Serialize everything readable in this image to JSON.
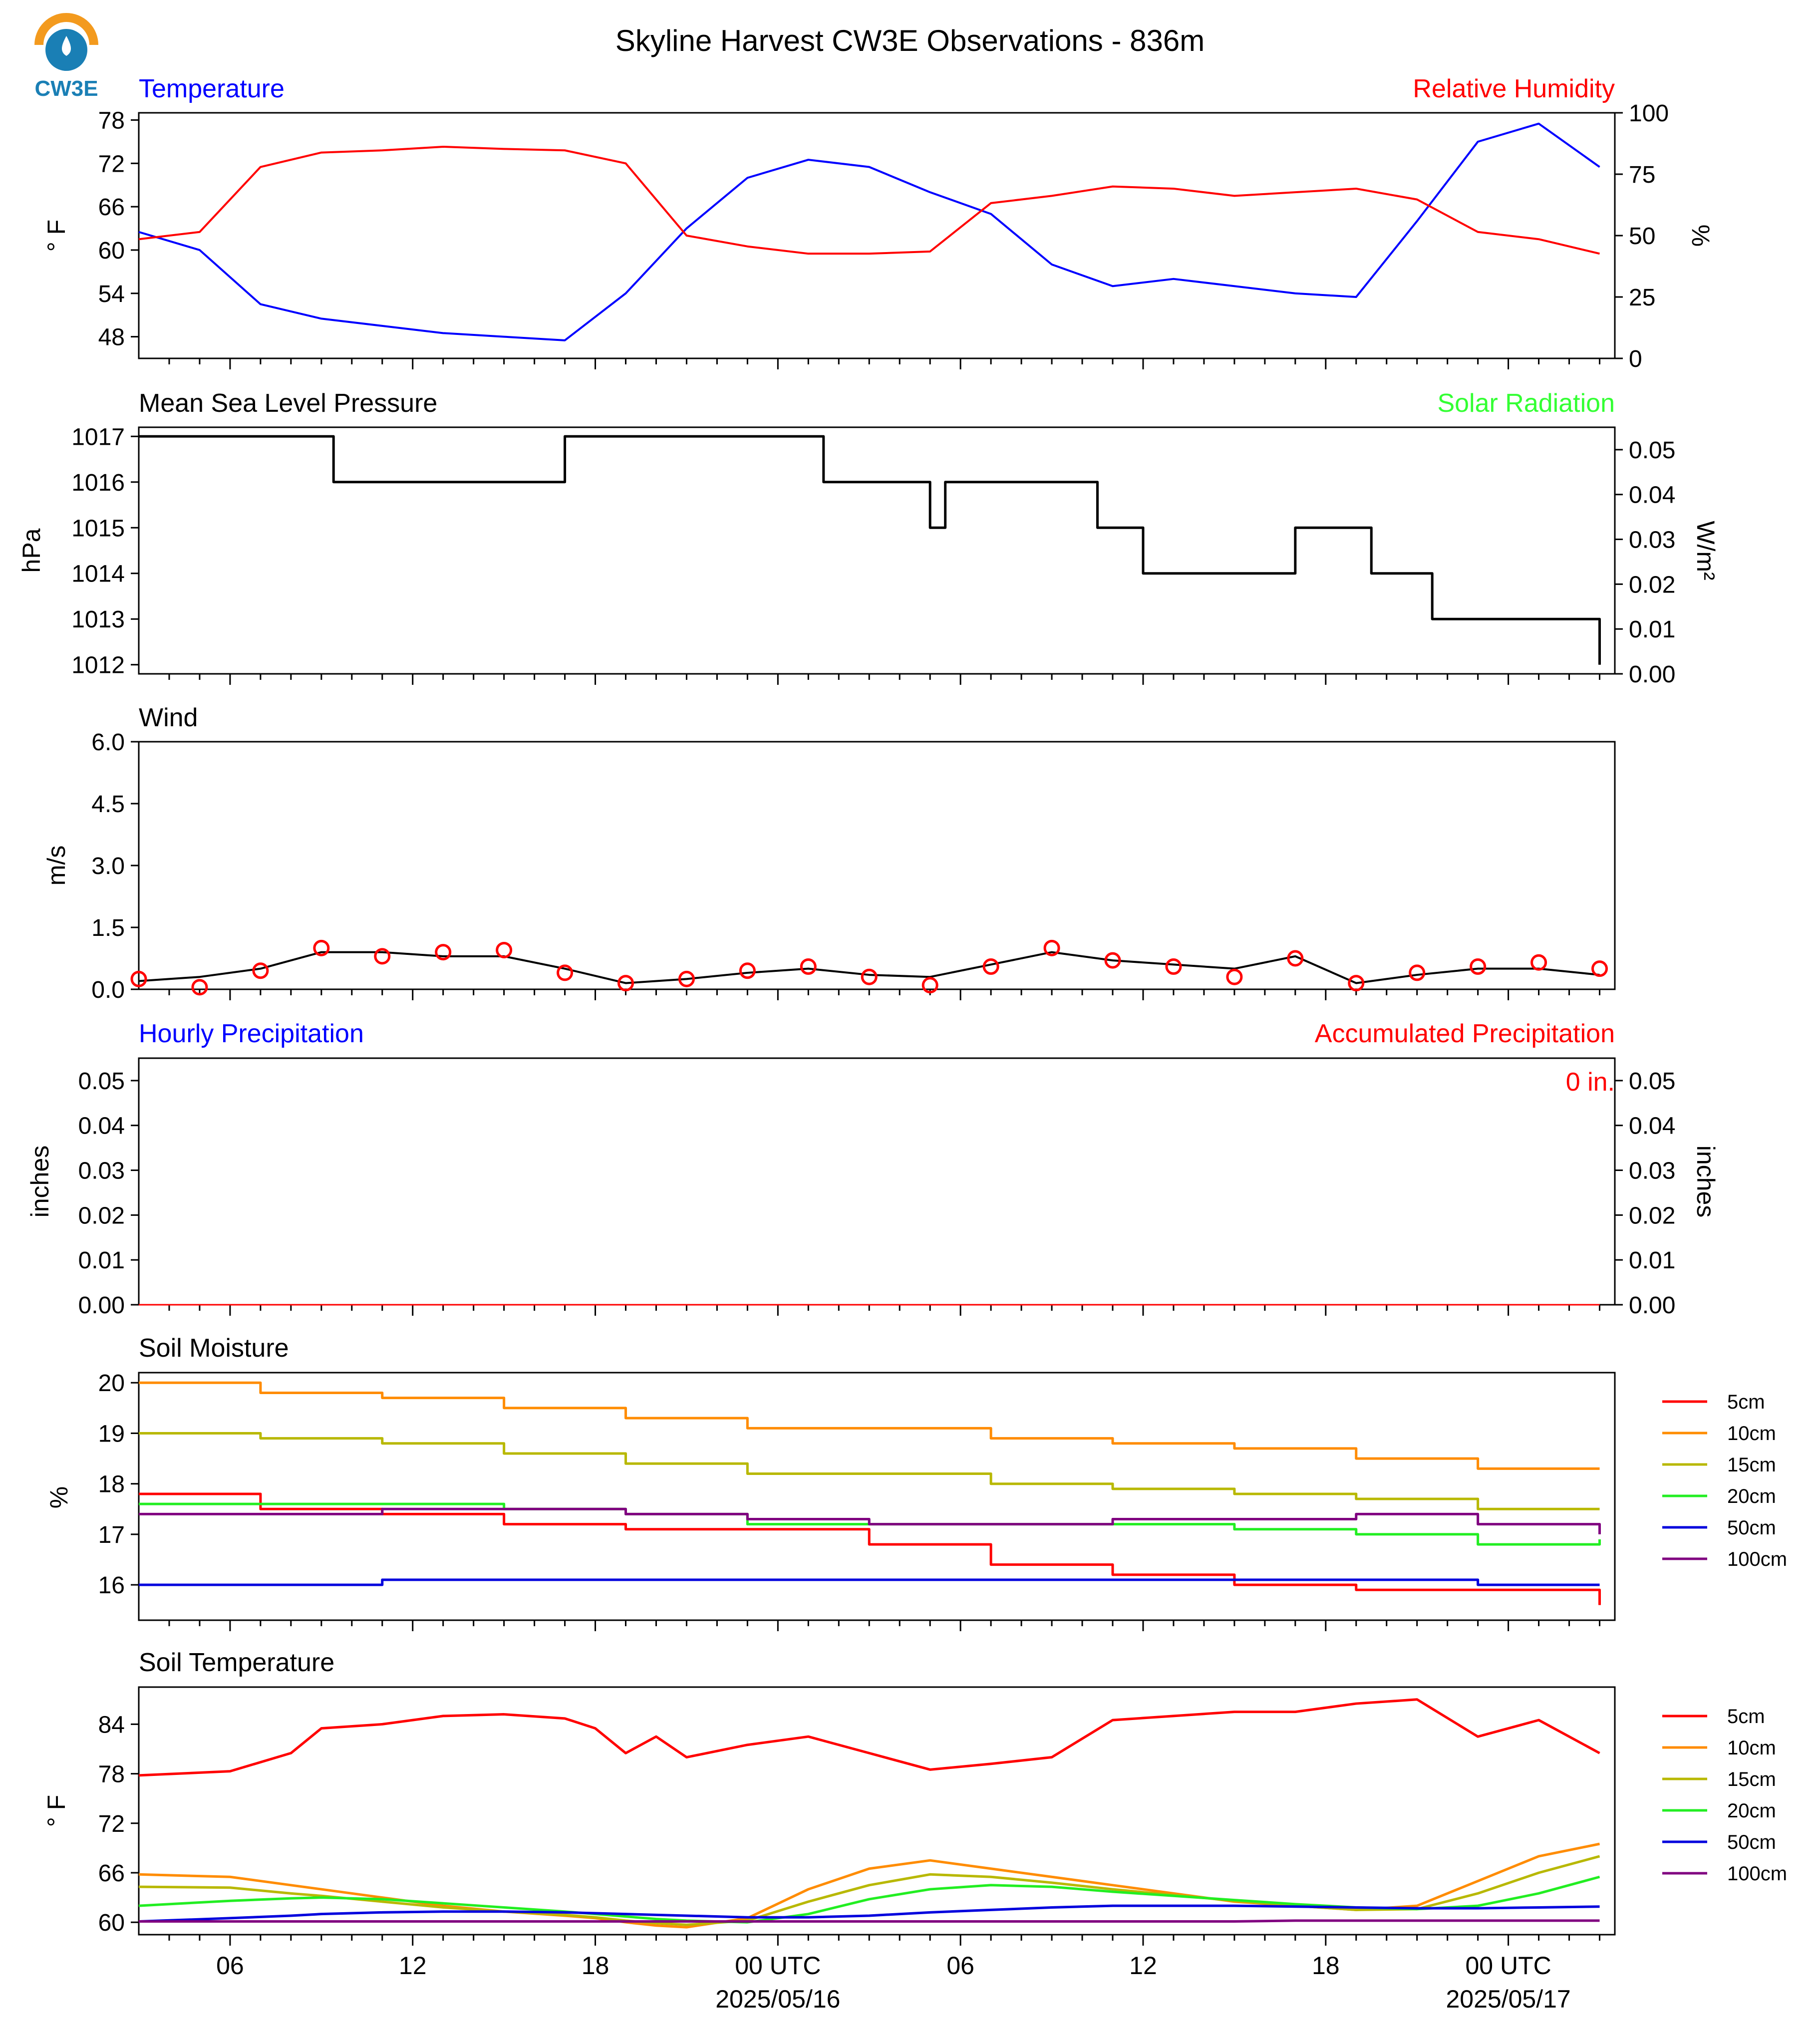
{
  "title": "Skyline Harvest CW3E Observations - 836m",
  "logo_text": "CW3E",
  "x_axis": {
    "tick_labels": [
      "06",
      "12",
      "18",
      "00 UTC",
      "06",
      "12",
      "18",
      "00 UTC"
    ],
    "date_labels": [
      "2025/05/16",
      "2025/05/17"
    ]
  },
  "colors": {
    "temperature": "#0000ff",
    "humidity": "#ff0000",
    "solar": "#33ff33",
    "pressure": "#000000",
    "wind": "#000000",
    "gust": "#ff0000",
    "logo_orange": "#f39a1e",
    "logo_blue": "#1a7fb5"
  },
  "panels": {
    "temp": {
      "left_title": "Temperature",
      "right_title": "Relative Humidity",
      "ylabel": "° F",
      "ylabel2": "%"
    },
    "pressure": {
      "left_title": "Mean Sea Level Pressure",
      "right_title": "Solar Radiation",
      "ylabel": "hPa",
      "ylabel2": "W/m²"
    },
    "wind": {
      "left_title": "Wind",
      "ylabel": "m/s"
    },
    "precip": {
      "left_title": "Hourly Precipitation",
      "right_title": "Accumulated Precipitation",
      "ylabel": "inches",
      "ylabel2": "inches",
      "total": "0 in."
    },
    "soil_moisture": {
      "left_title": "Soil Moisture",
      "ylabel": "%"
    },
    "soil_temp": {
      "left_title": "Soil Temperature",
      "ylabel": "° F"
    }
  },
  "chart_data": [
    {
      "type": "line",
      "title": "Temperature / Relative Humidity",
      "x": [
        0,
        2,
        4,
        6,
        8,
        10,
        12,
        14,
        16,
        18,
        20,
        22,
        24,
        26,
        28,
        30,
        32,
        34,
        36,
        38,
        40,
        42,
        44,
        46,
        48
      ],
      "ylim": [
        45,
        79
      ],
      "yticks": [
        48,
        54,
        60,
        66,
        72,
        78
      ],
      "y2lim": [
        0,
        100
      ],
      "y2ticks": [
        0,
        25,
        50,
        75,
        100
      ],
      "series": [
        {
          "name": "Temperature",
          "axis": "left",
          "values": [
            62.5,
            60,
            52.5,
            50.5,
            49.5,
            48.5,
            48,
            47.5,
            54,
            63,
            70,
            72.5,
            71.5,
            68,
            65,
            58,
            55,
            56,
            55,
            54,
            53.5,
            64,
            75,
            77.5,
            71.5
          ]
        },
        {
          "name": "Relative Humidity",
          "axis": "left",
          "values": [
            61.5,
            62.5,
            71.5,
            73.5,
            73.8,
            74.3,
            74,
            73.8,
            72,
            62,
            60.5,
            59.5,
            59.5,
            59.8,
            66.5,
            67.5,
            68.8,
            68.5,
            67.5,
            68,
            68.5,
            67,
            62.5,
            61.5,
            59.5
          ]
        }
      ]
    },
    {
      "type": "line",
      "title": "Mean Sea Level Pressure",
      "x": [
        0,
        6.4,
        6.9,
        14,
        17.2,
        22.5,
        24.5,
        26,
        26.5,
        31.5,
        33,
        38,
        40.5,
        41.5,
        42.5,
        48
      ],
      "ylim": [
        1011.8,
        1017.2
      ],
      "yticks": [
        1012,
        1013,
        1014,
        1015,
        1016,
        1017
      ],
      "y2lim": [
        0.0,
        0.055
      ],
      "y2ticks": [
        0.0,
        0.01,
        0.02,
        0.03,
        0.04,
        0.05
      ],
      "series": [
        {
          "name": "Pressure",
          "values": [
            1017,
            1016,
            1016,
            1017,
            1017,
            1016,
            1016,
            1015,
            1016,
            1015,
            1014,
            1015,
            1014,
            1014,
            1013,
            1012
          ]
        }
      ]
    },
    {
      "type": "line",
      "title": "Wind",
      "x": [
        0,
        2,
        4,
        6,
        8,
        10,
        12,
        14,
        16,
        18,
        20,
        22,
        24,
        26,
        28,
        30,
        32,
        34,
        36,
        38,
        40,
        42,
        44,
        46,
        48
      ],
      "ylim": [
        0,
        6
      ],
      "yticks": [
        0.0,
        1.5,
        3.0,
        4.5,
        6.0
      ],
      "series": [
        {
          "name": "Wind speed",
          "values": [
            0.2,
            0.3,
            0.5,
            0.9,
            0.9,
            0.8,
            0.8,
            0.5,
            0.15,
            0.25,
            0.4,
            0.5,
            0.35,
            0.3,
            0.6,
            0.9,
            0.7,
            0.6,
            0.5,
            0.8,
            0.15,
            0.35,
            0.5,
            0.5,
            0.35
          ]
        },
        {
          "name": "Wind gust",
          "values": [
            0.25,
            0.05,
            0.45,
            1.0,
            0.8,
            0.9,
            0.95,
            0.4,
            0.15,
            0.25,
            0.45,
            0.55,
            0.3,
            0.1,
            0.55,
            1.0,
            0.7,
            0.55,
            0.3,
            0.75,
            0.15,
            0.4,
            0.55,
            0.65,
            0.5
          ]
        }
      ]
    },
    {
      "type": "line",
      "title": "Hourly Precipitation / Accumulated Precipitation",
      "x": [
        0,
        48
      ],
      "ylim": [
        0,
        0.055
      ],
      "yticks": [
        0.0,
        0.01,
        0.02,
        0.03,
        0.04,
        0.05
      ],
      "series": [
        {
          "name": "Hourly Precipitation",
          "values": [
            0,
            0
          ]
        },
        {
          "name": "Accumulated Precipitation",
          "values": [
            0,
            0
          ]
        }
      ]
    },
    {
      "type": "line",
      "title": "Soil Moisture",
      "x": [
        0,
        4,
        8,
        12,
        16,
        20,
        24,
        28,
        32,
        36,
        40,
        44,
        48
      ],
      "ylim": [
        15.3,
        20.2
      ],
      "yticks": [
        16,
        17,
        18,
        19,
        20
      ],
      "series": [
        {
          "name": "5cm",
          "values": [
            17.8,
            17.5,
            17.4,
            17.2,
            17.1,
            17.1,
            16.8,
            16.4,
            16.2,
            16.0,
            15.9,
            15.9,
            15.6
          ]
        },
        {
          "name": "10cm",
          "values": [
            20.0,
            19.8,
            19.7,
            19.5,
            19.3,
            19.1,
            19.1,
            18.9,
            18.8,
            18.7,
            18.5,
            18.3,
            18.3
          ]
        },
        {
          "name": "15cm",
          "values": [
            19.0,
            18.9,
            18.8,
            18.6,
            18.4,
            18.2,
            18.2,
            18.0,
            17.9,
            17.8,
            17.7,
            17.5,
            17.5
          ]
        },
        {
          "name": "20cm",
          "values": [
            17.6,
            17.6,
            17.6,
            17.5,
            17.4,
            17.2,
            17.2,
            17.2,
            17.2,
            17.1,
            17.0,
            16.8,
            16.9
          ]
        },
        {
          "name": "50cm",
          "values": [
            16.0,
            16.0,
            16.1,
            16.1,
            16.1,
            16.1,
            16.1,
            16.1,
            16.1,
            16.1,
            16.1,
            16.0,
            16.0
          ]
        },
        {
          "name": "100cm",
          "values": [
            17.4,
            17.4,
            17.5,
            17.5,
            17.4,
            17.3,
            17.2,
            17.2,
            17.3,
            17.3,
            17.4,
            17.2,
            17.0
          ]
        }
      ]
    },
    {
      "type": "line",
      "title": "Soil Temperature",
      "x": [
        0,
        3,
        5,
        6,
        8,
        10,
        12,
        14,
        15,
        16,
        17,
        18,
        20,
        22,
        24,
        26,
        28,
        30,
        32,
        34,
        36,
        38,
        40,
        42,
        44,
        46,
        48
      ],
      "ylim": [
        58.5,
        88.5
      ],
      "yticks": [
        60,
        66,
        72,
        78,
        84
      ],
      "series": [
        {
          "name": "5cm",
          "values": [
            77.8,
            78.3,
            80.5,
            83.5,
            84,
            85,
            85.2,
            84.7,
            83.5,
            80.5,
            82.5,
            80,
            81.5,
            82.5,
            80.5,
            78.5,
            79.2,
            80,
            84.5,
            85,
            85.5,
            85.5,
            86.5,
            87,
            82.5,
            84.5,
            80.5
          ]
        },
        {
          "name": "10cm",
          "values": [
            65.8,
            65.5,
            64.5,
            64,
            63,
            62,
            61.3,
            60.8,
            60.5,
            60,
            59.6,
            59.4,
            60.5,
            64,
            66.5,
            67.5,
            66.5,
            65.5,
            64.5,
            63.5,
            62.5,
            62,
            61.5,
            62,
            65,
            68,
            69.5
          ]
        },
        {
          "name": "15cm",
          "values": [
            64.3,
            64.2,
            63.5,
            63.2,
            62.5,
            61.8,
            61.3,
            60.9,
            60.6,
            60.2,
            59.9,
            59.7,
            60.2,
            62.5,
            64.5,
            65.8,
            65.5,
            64.8,
            64,
            63.3,
            62.6,
            62,
            61.5,
            61.6,
            63.5,
            66,
            68
          ]
        },
        {
          "name": "20cm",
          "values": [
            62,
            62.6,
            62.9,
            63,
            62.8,
            62.3,
            61.8,
            61.3,
            61,
            60.7,
            60.4,
            60.2,
            60,
            61,
            62.8,
            64,
            64.5,
            64.3,
            63.7,
            63.2,
            62.7,
            62.2,
            61.8,
            61.6,
            62,
            63.5,
            65.5
          ]
        },
        {
          "name": "50cm",
          "values": [
            60.1,
            60.5,
            60.8,
            61,
            61.2,
            61.3,
            61.3,
            61.2,
            61.1,
            61,
            60.9,
            60.8,
            60.6,
            60.6,
            60.8,
            61.2,
            61.5,
            61.8,
            62,
            62,
            62,
            61.9,
            61.8,
            61.7,
            61.7,
            61.8,
            61.9
          ]
        },
        {
          "name": "100cm",
          "values": [
            60.1,
            60.1,
            60.1,
            60.1,
            60.1,
            60.1,
            60.1,
            60.1,
            60.1,
            60.1,
            60.1,
            60.1,
            60.1,
            60.1,
            60.1,
            60.1,
            60.1,
            60.1,
            60.1,
            60.1,
            60.1,
            60.2,
            60.2,
            60.2,
            60.2,
            60.2,
            60.2
          ]
        }
      ]
    }
  ],
  "legend_soil_moisture": [
    {
      "label": "5cm",
      "color": "#ff0000"
    },
    {
      "label": "10cm",
      "color": "#ff8c00"
    },
    {
      "label": "15cm",
      "color": "#b8b800"
    },
    {
      "label": "20cm",
      "color": "#22ee22"
    },
    {
      "label": "50cm",
      "color": "#0000dd"
    },
    {
      "label": "100cm",
      "color": "#800080"
    }
  ],
  "legend_soil_temp": [
    {
      "label": "5cm",
      "color": "#ff0000"
    },
    {
      "label": "10cm",
      "color": "#ff8c00"
    },
    {
      "label": "15cm",
      "color": "#b8b800"
    },
    {
      "label": "20cm",
      "color": "#22ee22"
    },
    {
      "label": "50cm",
      "color": "#0000dd"
    },
    {
      "label": "100cm",
      "color": "#800080"
    }
  ]
}
